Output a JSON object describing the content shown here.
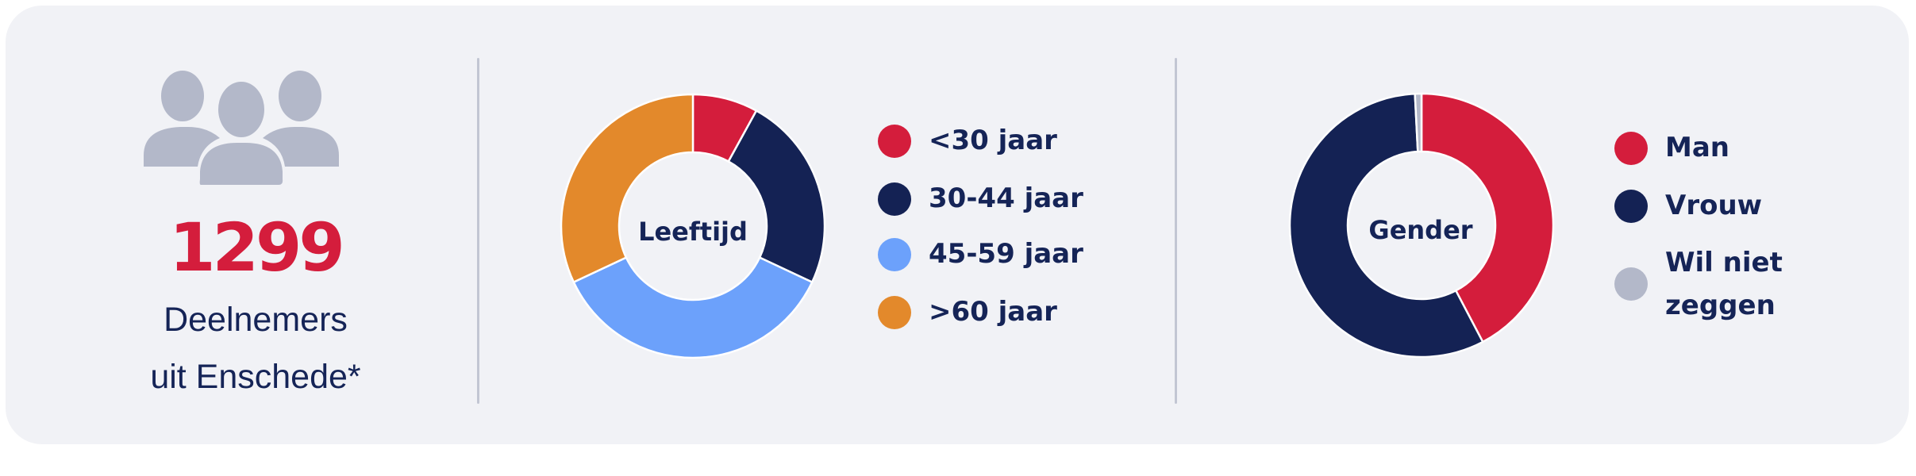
{
  "summary": {
    "count": "1299",
    "caption_line1": "Deelnemers",
    "caption_line2": "uit Enschede*",
    "icon": "people-group-icon"
  },
  "colors": {
    "background": "#F1F2F6",
    "red": "#D41D3C",
    "navy": "#142254",
    "light_blue": "#6CA1FB",
    "orange": "#E3892B",
    "grey": "#B3B8C9",
    "text": "#152457"
  },
  "chart_data": [
    {
      "type": "pie",
      "variant": "donut",
      "title": "Leeftijd",
      "categories": [
        "<30 jaar",
        "30-44 jaar",
        "45-59 jaar",
        ">60 jaar"
      ],
      "values": [
        8,
        24,
        36,
        32
      ],
      "unit": "% (estimated from arc angles)",
      "colors": [
        "#D41D3C",
        "#142254",
        "#6CA1FB",
        "#E3892B"
      ],
      "legend_position": "right",
      "start_angle_deg": 0,
      "direction": "clockwise"
    },
    {
      "type": "pie",
      "variant": "donut",
      "title": "Gender",
      "categories": [
        "Man",
        "Vrouw",
        "Wil niet zeggen"
      ],
      "values": [
        42.3,
        56.9,
        0.8
      ],
      "unit": "% (estimated from arc angles)",
      "colors": [
        "#D41D3C",
        "#142254",
        "#B3B8C9"
      ],
      "legend_position": "right",
      "start_angle_deg": 0,
      "direction": "clockwise"
    }
  ],
  "age_chart": {
    "center_label": "Leeftijd",
    "legend": [
      {
        "label": "<30 jaar",
        "color": "#D41D3C"
      },
      {
        "label": "30-44 jaar",
        "color": "#142254"
      },
      {
        "label": "45-59 jaar",
        "color": "#6CA1FB"
      },
      {
        "label": ">60 jaar",
        "color": "#E3892B"
      }
    ]
  },
  "gender_chart": {
    "center_label": "Gender",
    "legend": [
      {
        "label": "Man",
        "color": "#D41D3C"
      },
      {
        "label": "Vrouw",
        "color": "#142254"
      },
      {
        "label_line1": "Wil niet",
        "label_line2": "zeggen",
        "color": "#B3B8C9"
      }
    ]
  }
}
